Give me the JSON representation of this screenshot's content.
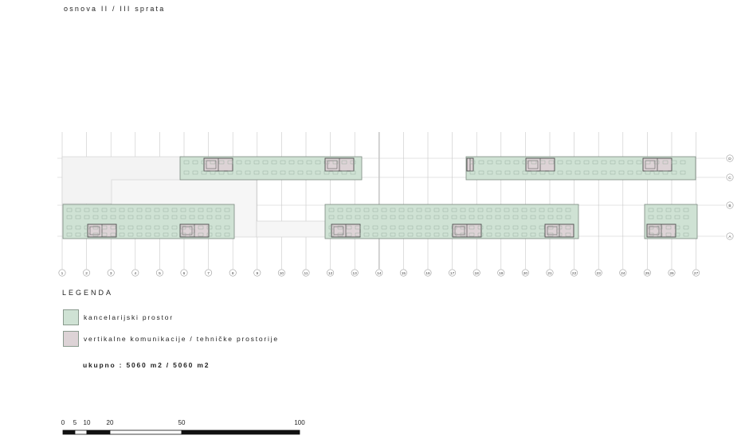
{
  "title": "osnova II / III sprata",
  "axes": {
    "columns": [
      "1",
      "2",
      "3",
      "4",
      "5",
      "6",
      "7",
      "8",
      "9",
      "10",
      "11",
      "12",
      "13",
      "14",
      "15",
      "16",
      "17",
      "18",
      "19",
      "20",
      "21",
      "22",
      "23",
      "24",
      "25",
      "26",
      "27"
    ],
    "rows": [
      "D",
      "C",
      "B",
      "A"
    ]
  },
  "legend": {
    "title": "LEGENDA",
    "items": [
      {
        "label": "kancelarijski prostor",
        "color": "#cfe2d4"
      },
      {
        "label": "vertikalne komunikacije / tehničke prostorije",
        "color": "#ddd3d6"
      }
    ]
  },
  "total": "ukupno : 5060 m2 / 5060 m2",
  "scale_bar": {
    "labels": [
      "0",
      "5",
      "10",
      "20",
      "50",
      "100"
    ]
  },
  "colors": {
    "office": "#cfe2d4",
    "core": "#ddd3d6",
    "grid": "#c8c8c8",
    "outline": "#7b8a80"
  }
}
